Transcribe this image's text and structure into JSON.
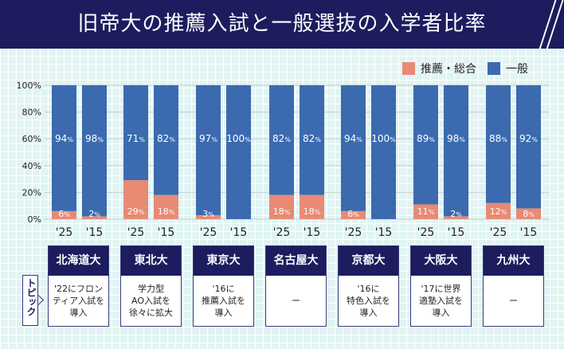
{
  "header": {
    "title": "旧帝大の推薦入試と一般選抜の入学者比率"
  },
  "legend": [
    {
      "label": "推薦・総合",
      "color": "#e88a74"
    },
    {
      "label": "一般",
      "color": "#3b6aaf"
    }
  ],
  "chart_data": {
    "type": "bar",
    "stacked": true,
    "ylim": [
      0,
      100
    ],
    "yticks": [
      "0%",
      "20%",
      "40%",
      "60%",
      "80%",
      "100%"
    ],
    "ytick_values": [
      0,
      20,
      40,
      60,
      80,
      100
    ],
    "groups": [
      "北海道大",
      "東北大",
      "東京大",
      "名古屋大",
      "京都大",
      "大阪大",
      "九州大"
    ],
    "categories": [
      "'25",
      "'15"
    ],
    "series": [
      {
        "name": "推薦・総合",
        "color": "#e88a74",
        "values": [
          [
            6,
            2
          ],
          [
            29,
            18
          ],
          [
            3,
            0
          ],
          [
            18,
            18
          ],
          [
            6,
            0
          ],
          [
            11,
            2
          ],
          [
            12,
            8
          ]
        ],
        "labels": [
          [
            "6",
            "2"
          ],
          [
            "29",
            "18"
          ],
          [
            "3",
            ""
          ],
          [
            "18",
            "18"
          ],
          [
            "6",
            ""
          ],
          [
            "11",
            "2"
          ],
          [
            "12",
            "8"
          ]
        ]
      },
      {
        "name": "一般",
        "color": "#3b6aaf",
        "values": [
          [
            94,
            98
          ],
          [
            71,
            82
          ],
          [
            97,
            100
          ],
          [
            82,
            82
          ],
          [
            94,
            100
          ],
          [
            89,
            98
          ],
          [
            88,
            92
          ]
        ],
        "labels": [
          [
            "94",
            "98"
          ],
          [
            "71",
            "82"
          ],
          [
            "97",
            "100"
          ],
          [
            "82",
            "82"
          ],
          [
            "94",
            "100"
          ],
          [
            "89",
            "98"
          ],
          [
            "88",
            "92"
          ]
        ]
      }
    ],
    "percent_suffix": "%",
    "grid": true
  },
  "topic_label": "トピック",
  "universities": [
    {
      "name": "北海道大",
      "topic": "'22にフロン\nティア入試を\n導入"
    },
    {
      "name": "東北大",
      "topic": "学力型\nAO入試を\n徐々に拡大"
    },
    {
      "name": "東京大",
      "topic": "'16に\n推薦入試を\n導入"
    },
    {
      "name": "名古屋大",
      "topic": "ー"
    },
    {
      "name": "京都大",
      "topic": "'16に\n特色入試を\n導入"
    },
    {
      "name": "大阪大",
      "topic": "'17に世界\n適塾入試を\n導入"
    },
    {
      "name": "九州大",
      "topic": "ー"
    }
  ]
}
